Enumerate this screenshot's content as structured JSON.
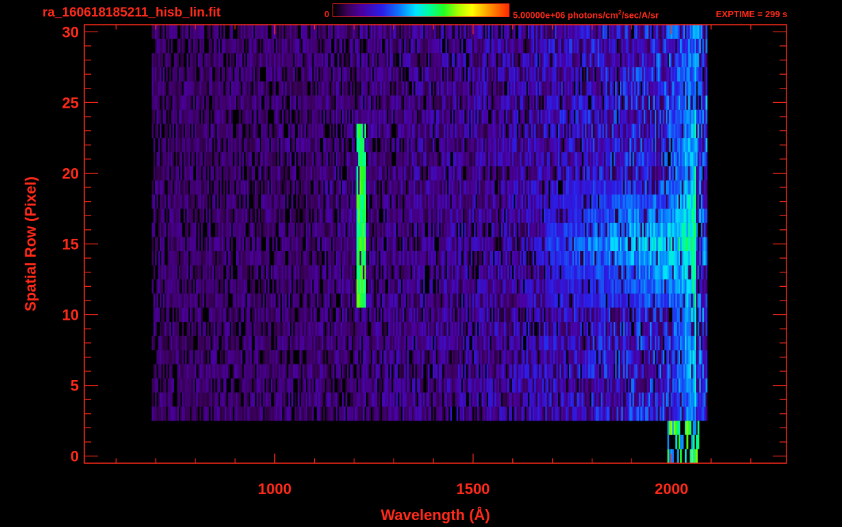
{
  "header": {
    "filename": "ra_160618185211_hisb_lin.fit",
    "colorbar_min": "0",
    "colorbar_max_value": "5.00000e+06 photons/cm",
    "colorbar_max_exp": "2",
    "colorbar_max_unit": "/sec/A/sr",
    "exptime": "EXPTIME = 299 s"
  },
  "colors": {
    "axis": "#ff2a1a",
    "background": "#000000"
  },
  "chart_data": {
    "type": "heatmap",
    "title": "ra_160618185211_hisb_lin.fit",
    "xlabel": "Wavelength (Å)",
    "ylabel": "Spatial Row (Pixel)",
    "xlim": [
      520,
      2290
    ],
    "ylim": [
      -0.5,
      30.5
    ],
    "xticks": [
      1000,
      1500,
      2000
    ],
    "yticks": [
      0,
      5,
      10,
      15,
      20,
      25,
      30
    ],
    "colorbar": {
      "min": 0,
      "max": 5000000,
      "unit": "photons/cm^2/sec/A/sr"
    },
    "data_extent": {
      "wavelength": [
        690,
        2090
      ],
      "rows": [
        3,
        30
      ]
    },
    "features": [
      {
        "name": "Lyman-alpha line",
        "wavelength": 1216,
        "rows": [
          11,
          23
        ],
        "intensity": 0.62
      },
      {
        "name": "Broad band emission",
        "wavelength": [
          1680,
          2060
        ],
        "rows": [
          11,
          19
        ],
        "intensity": 0.55
      },
      {
        "name": "Red edge",
        "wavelength": [
          2000,
          2060
        ],
        "rows": [
          0,
          30
        ],
        "intensity": 0.6
      }
    ]
  }
}
